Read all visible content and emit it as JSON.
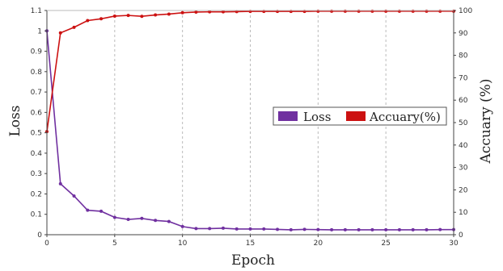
{
  "chart_data": {
    "type": "line",
    "xlabel": "Epoch",
    "ylabel_left": "Loss",
    "ylabel_right": "Accuary (%)",
    "xlim": [
      0,
      30
    ],
    "ylim_left": [
      0,
      1.1
    ],
    "ylim_right": [
      0,
      100
    ],
    "x_ticks": [
      0,
      5,
      10,
      15,
      20,
      25,
      30
    ],
    "y_left_ticks": [
      "0",
      "0.1",
      "0.2",
      "0.3",
      "0.4",
      "0.5",
      "0.6",
      "0.7",
      "0.8",
      "0.9",
      "1",
      "1.1"
    ],
    "y_right_ticks": [
      "0",
      "10",
      "20",
      "30",
      "40",
      "50",
      "60",
      "70",
      "80",
      "90",
      "100"
    ],
    "grid": "vertical dashed at x ticks",
    "legend_position": "middle-right",
    "series": [
      {
        "name": "Loss",
        "axis": "left",
        "color": "#7030a0",
        "x": [
          0,
          1,
          2,
          3,
          4,
          5,
          6,
          7,
          8,
          9,
          10,
          11,
          12,
          13,
          14,
          15,
          16,
          17,
          18,
          19,
          20,
          21,
          22,
          23,
          24,
          25,
          26,
          27,
          28,
          29,
          30
        ],
        "values": [
          1.0,
          0.25,
          0.19,
          0.12,
          0.115,
          0.085,
          0.075,
          0.08,
          0.07,
          0.065,
          0.04,
          0.03,
          0.03,
          0.032,
          0.028,
          0.028,
          0.028,
          0.026,
          0.024,
          0.026,
          0.025,
          0.024,
          0.024,
          0.024,
          0.024,
          0.024,
          0.024,
          0.024,
          0.024,
          0.025,
          0.025
        ]
      },
      {
        "name": "Accuary(%)",
        "axis": "right",
        "color": "#cc1111",
        "x": [
          0,
          1,
          2,
          3,
          4,
          5,
          6,
          7,
          8,
          9,
          10,
          11,
          12,
          13,
          14,
          15,
          16,
          17,
          18,
          19,
          20,
          21,
          22,
          23,
          24,
          25,
          26,
          27,
          28,
          29,
          30
        ],
        "values": [
          46,
          90,
          92.5,
          95.5,
          96.3,
          97.5,
          97.8,
          97.4,
          98,
          98.4,
          99,
          99.3,
          99.4,
          99.4,
          99.5,
          99.6,
          99.6,
          99.6,
          99.6,
          99.6,
          99.7,
          99.7,
          99.7,
          99.7,
          99.7,
          99.7,
          99.7,
          99.7,
          99.7,
          99.7,
          99.7
        ]
      }
    ]
  }
}
